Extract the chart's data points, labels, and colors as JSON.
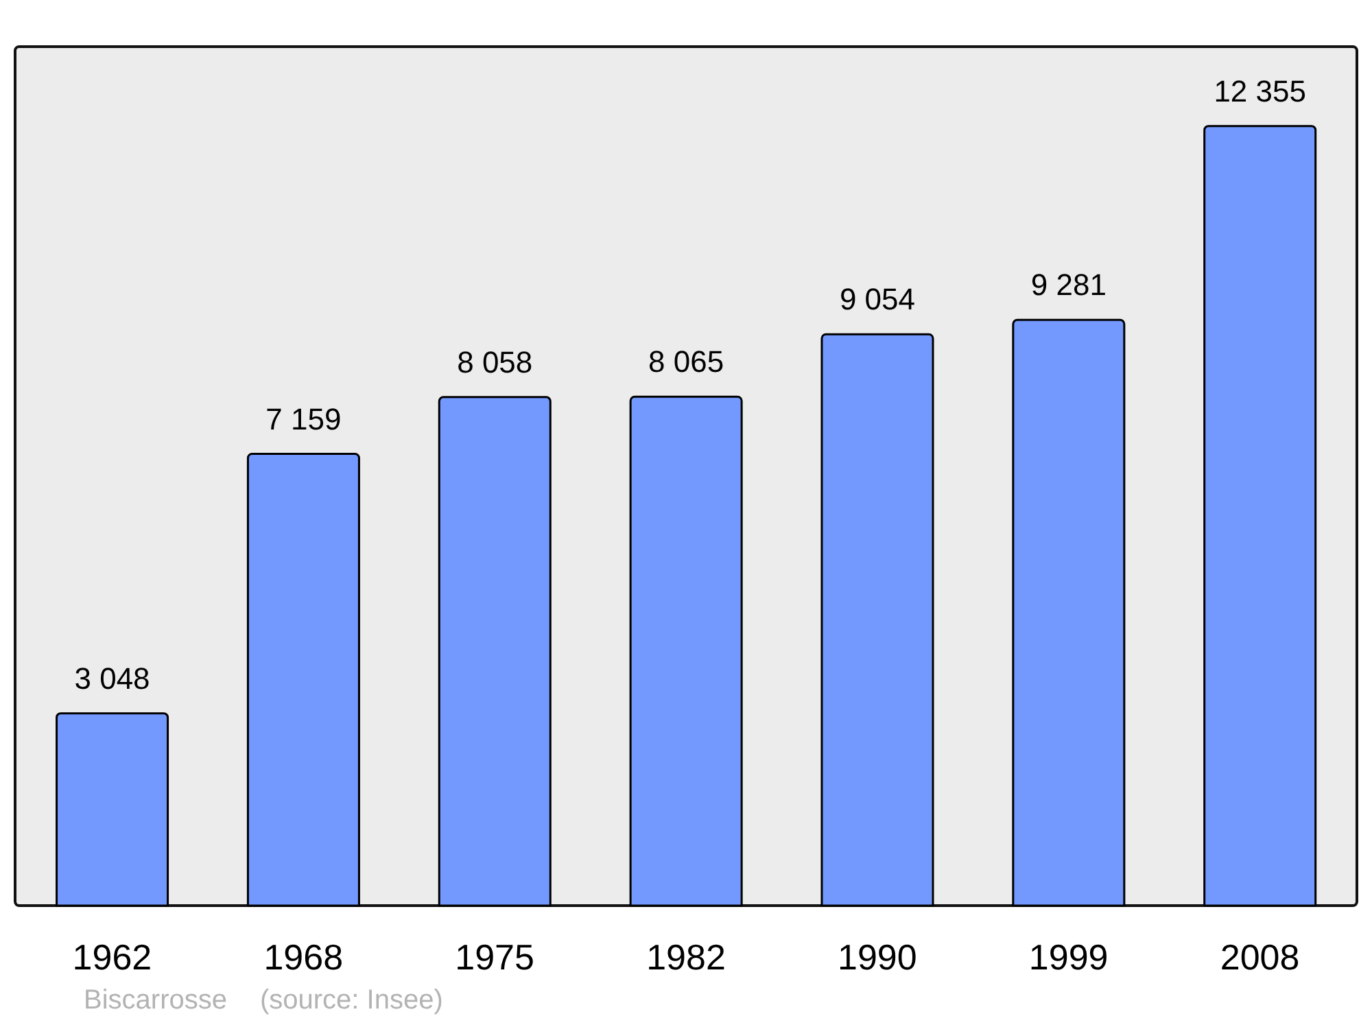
{
  "chart_data": {
    "type": "bar",
    "categories": [
      "1962",
      "1968",
      "1975",
      "1982",
      "1990",
      "1999",
      "2008"
    ],
    "values": [
      3048,
      7159,
      8058,
      8065,
      9054,
      9281,
      12355
    ],
    "value_labels": [
      "3 048",
      "7 159",
      "8 058",
      "8 065",
      "9 054",
      "9 281",
      "12 355"
    ],
    "color": "#7399ff",
    "annotations": [
      "Biscarrosse",
      "(source: Insee)"
    ]
  }
}
